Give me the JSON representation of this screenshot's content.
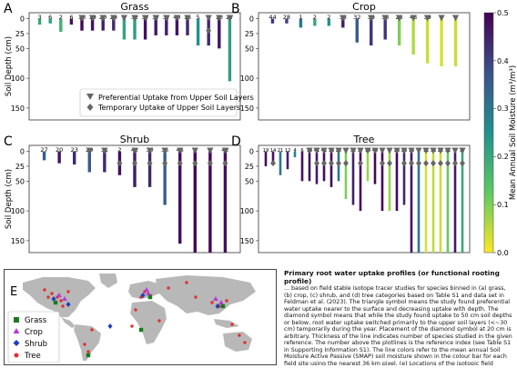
{
  "chart_data": [
    {
      "panel": "A",
      "type": "bar",
      "title": "Grass",
      "ylabel": "Soil Depth (cm)",
      "ylim": [
        170,
        -10
      ],
      "yticks": [
        0,
        25,
        50,
        100,
        150
      ],
      "counts": [
        "3",
        "6",
        "2",
        "6",
        "18",
        "19",
        "20",
        "29",
        "7",
        "32",
        "37",
        "37",
        "37",
        "40",
        "15",
        "5",
        "6",
        "10",
        "27"
      ],
      "top_depth": [
        0,
        0,
        0,
        0,
        0,
        0,
        0,
        0,
        0,
        0,
        0,
        0,
        0,
        0,
        0,
        0,
        0,
        0,
        0
      ],
      "bottom_depth": [
        10,
        8,
        22,
        10,
        20,
        20,
        20,
        20,
        35,
        35,
        35,
        28,
        28,
        28,
        28,
        45,
        45,
        50,
        105
      ],
      "moisture": [
        0.2,
        0.22,
        0.18,
        0.47,
        0.49,
        0.47,
        0.45,
        0.44,
        0.21,
        0.22,
        0.47,
        0.46,
        0.45,
        0.47,
        0.44,
        0.25,
        0.44,
        0.47,
        0.22
      ],
      "preferential": [
        false,
        false,
        false,
        false,
        true,
        true,
        true,
        true,
        true,
        true,
        true,
        true,
        true,
        true,
        true,
        false,
        true,
        true,
        true
      ],
      "temporary": [
        false,
        false,
        false,
        false,
        false,
        false,
        false,
        false,
        false,
        false,
        false,
        false,
        false,
        false,
        false,
        false,
        true,
        false,
        false
      ],
      "legend": {
        "preferential_label": "Preferential Uptake from Upper Soil Layers",
        "temporary_label": "Temporary Uptake of Upper Soil Layers"
      }
    },
    {
      "panel": "B",
      "type": "bar",
      "title": "Crop",
      "ylim": [
        170,
        -10
      ],
      "yticks": [
        0,
        25,
        50,
        100,
        150
      ],
      "counts": [
        "44",
        "28",
        "1",
        "2",
        "2",
        "38",
        "32",
        "39",
        "38",
        "25",
        "43",
        "39",
        "8",
        "8"
      ],
      "top_depth": [
        0,
        0,
        0,
        0,
        0,
        0,
        0,
        0,
        0,
        0,
        0,
        0,
        0,
        0
      ],
      "bottom_depth": [
        8,
        8,
        15,
        12,
        12,
        15,
        40,
        45,
        35,
        45,
        60,
        75,
        80,
        80
      ],
      "moisture": [
        0.42,
        0.4,
        0.3,
        0.2,
        0.25,
        0.46,
        0.36,
        0.42,
        0.42,
        0.1,
        0.06,
        0.04,
        0.03,
        0.04
      ],
      "preferential": [
        false,
        false,
        false,
        false,
        false,
        true,
        false,
        true,
        true,
        true,
        true,
        true,
        true,
        true
      ],
      "temporary": [
        false,
        false,
        false,
        false,
        false,
        false,
        false,
        false,
        false,
        false,
        false,
        false,
        false,
        false
      ]
    },
    {
      "panel": "C",
      "type": "bar",
      "title": "Shrub",
      "ylabel": "Soil Depth (cm)",
      "ylim": [
        170,
        -10
      ],
      "yticks": [
        0,
        25,
        50,
        100,
        150
      ],
      "counts": [
        "27",
        "20",
        "23",
        "29",
        "31",
        "2",
        "42",
        "30",
        "35",
        "45",
        "7",
        "9",
        "42"
      ],
      "top_depth": [
        0,
        0,
        0,
        0,
        0,
        0,
        0,
        0,
        0,
        0,
        0,
        0,
        0
      ],
      "bottom_depth": [
        15,
        20,
        22,
        35,
        35,
        40,
        60,
        60,
        90,
        155,
        170,
        170,
        170
      ],
      "moisture": [
        0.35,
        0.47,
        0.44,
        0.36,
        0.44,
        0.48,
        0.46,
        0.44,
        0.35,
        0.48,
        0.49,
        0.49,
        0.48
      ],
      "preferential": [
        false,
        false,
        false,
        true,
        true,
        false,
        true,
        true,
        true,
        true,
        true,
        true,
        true
      ],
      "temporary": [
        false,
        false,
        false,
        false,
        false,
        true,
        true,
        true,
        true,
        true,
        true,
        true,
        true
      ]
    },
    {
      "panel": "D",
      "type": "bar",
      "title": "Tree",
      "ylim": [
        170,
        -10
      ],
      "yticks": [
        0,
        25,
        50,
        100,
        150
      ],
      "counts": [
        "19",
        "14",
        "21",
        "12",
        "4",
        "6",
        "18",
        "41",
        "41",
        "33",
        "22",
        "4",
        "12",
        "37",
        "10",
        "40",
        "6",
        "6",
        "26",
        "28",
        "36",
        "2",
        "11",
        "33",
        "22",
        "31",
        "5",
        "17"
      ],
      "top_depth": [
        0,
        0,
        0,
        0,
        0,
        0,
        0,
        0,
        0,
        0,
        0,
        0,
        0,
        0,
        0,
        0,
        0,
        0,
        0,
        0,
        0,
        0,
        0,
        0,
        0,
        0,
        0,
        0
      ],
      "bottom_depth": [
        25,
        20,
        40,
        30,
        10,
        50,
        50,
        55,
        50,
        60,
        50,
        80,
        90,
        100,
        50,
        55,
        100,
        100,
        100,
        90,
        170,
        170,
        170,
        170,
        170,
        170,
        170,
        170
      ],
      "moisture": [
        0.48,
        0.47,
        0.3,
        0.45,
        0.27,
        0.48,
        0.47,
        0.46,
        0.48,
        0.49,
        0.3,
        0.1,
        0.45,
        0.49,
        0.08,
        0.49,
        0.49,
        0.08,
        0.49,
        0.44,
        0.47,
        0.3,
        0.03,
        0.05,
        0.04,
        0.12,
        0.46,
        0.2
      ],
      "preferential": [
        false,
        false,
        false,
        false,
        false,
        false,
        true,
        true,
        true,
        true,
        true,
        true,
        true,
        true,
        true,
        true,
        true,
        true,
        true,
        true,
        true,
        true,
        true,
        true,
        true,
        true,
        true,
        true
      ],
      "temporary": [
        false,
        true,
        false,
        false,
        false,
        false,
        false,
        true,
        true,
        true,
        true,
        true,
        false,
        true,
        false,
        false,
        true,
        true,
        false,
        true,
        true,
        true,
        true,
        true,
        true,
        true,
        true,
        true
      ]
    }
  ],
  "colorbar": {
    "label": "Mean Annual Soil Moisture (m³/m³)",
    "min": 0.0,
    "max": 0.5,
    "ticks": [
      "0.0",
      "0.1",
      "0.2",
      "0.3",
      "0.4",
      "0.5"
    ],
    "colors": [
      "#fde725",
      "#5ec962",
      "#21918c",
      "#3b528b",
      "#440154"
    ]
  },
  "map": {
    "panel": "E",
    "legend": [
      "Grass",
      "Crop",
      "Shrub",
      "Tree"
    ],
    "colors": {
      "Grass": "#1b7a1b",
      "Crop": "#b53ad6",
      "Shrub": "#1f3fbf",
      "Tree": "#e03030"
    }
  },
  "caption": {
    "title": "Primary root water uptake profiles (or functional rooting profile)",
    "body": "... based on field stable isotope tracer studies for species binned in (a) grass, (b) crop, (c) shrub, and (d) tree categories based on Table S1 and data set in Feldman et al. (2023). The triangle symbol means the study found preferential water uptake nearer to the surface and decreasing uptake with depth. The diamond symbol means that while the study found uptake to 50 cm soil depths or below, root water uptake switched primarily to the upper soil layers (<~30 cm) temporarily during the year. Placement of the diamond symbol at 20 cm is arbitrary. Thickness of the line indicates number of species studied in the given reference. The number above the plotlines is the reference index (see Table S1 in Supporting Information S1). The line colors refer to the mean annual Soil Moisture Active Passive (SMAP) soil moisture shown in the colour bar for each field site using the nearest 36 km pixel. (e) Locations of the isotopic field measurements."
  }
}
